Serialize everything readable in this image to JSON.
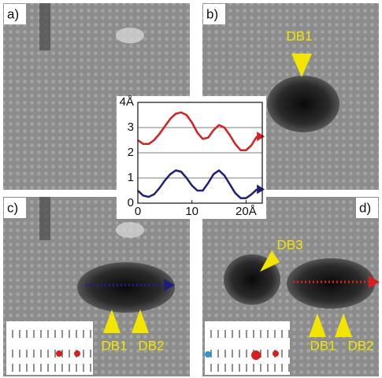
{
  "panels": [
    {
      "label": "a)"
    },
    {
      "label": "b)",
      "annotations": [
        "DB1"
      ]
    },
    {
      "label": "c)",
      "annotations": [
        "DB1",
        "DB2"
      ]
    },
    {
      "label": "d)",
      "annotations": [
        "DB3",
        "DB1",
        "DB2"
      ]
    }
  ],
  "chart_data": {
    "type": "line",
    "x": [
      0,
      1,
      2,
      3,
      4,
      5,
      6,
      7,
      8,
      9,
      10,
      11,
      12,
      13,
      14,
      15,
      16,
      17,
      18,
      19,
      20,
      21,
      22
    ],
    "series": [
      {
        "color": "#d62020",
        "values": [
          2.5,
          2.35,
          2.35,
          2.5,
          2.75,
          3.05,
          3.35,
          3.55,
          3.6,
          3.5,
          3.2,
          2.8,
          2.55,
          2.6,
          2.9,
          3.1,
          3.0,
          2.7,
          2.35,
          2.1,
          2.1,
          2.3,
          2.65
        ]
      },
      {
        "color": "#1f1f7a",
        "values": [
          0.5,
          0.3,
          0.25,
          0.35,
          0.6,
          0.9,
          1.15,
          1.3,
          1.25,
          1.0,
          0.7,
          0.5,
          0.5,
          0.8,
          1.15,
          1.3,
          1.1,
          0.75,
          0.4,
          0.2,
          0.2,
          0.35,
          0.55
        ]
      }
    ],
    "xlim": [
      0,
      23
    ],
    "ylim": [
      0,
      4
    ],
    "xticks": [
      0,
      10,
      {
        "value": 20,
        "label": "20Å"
      }
    ],
    "yticks": [
      0,
      1,
      2,
      3,
      {
        "value": 4,
        "label": "4Å"
      }
    ],
    "grid": true
  }
}
